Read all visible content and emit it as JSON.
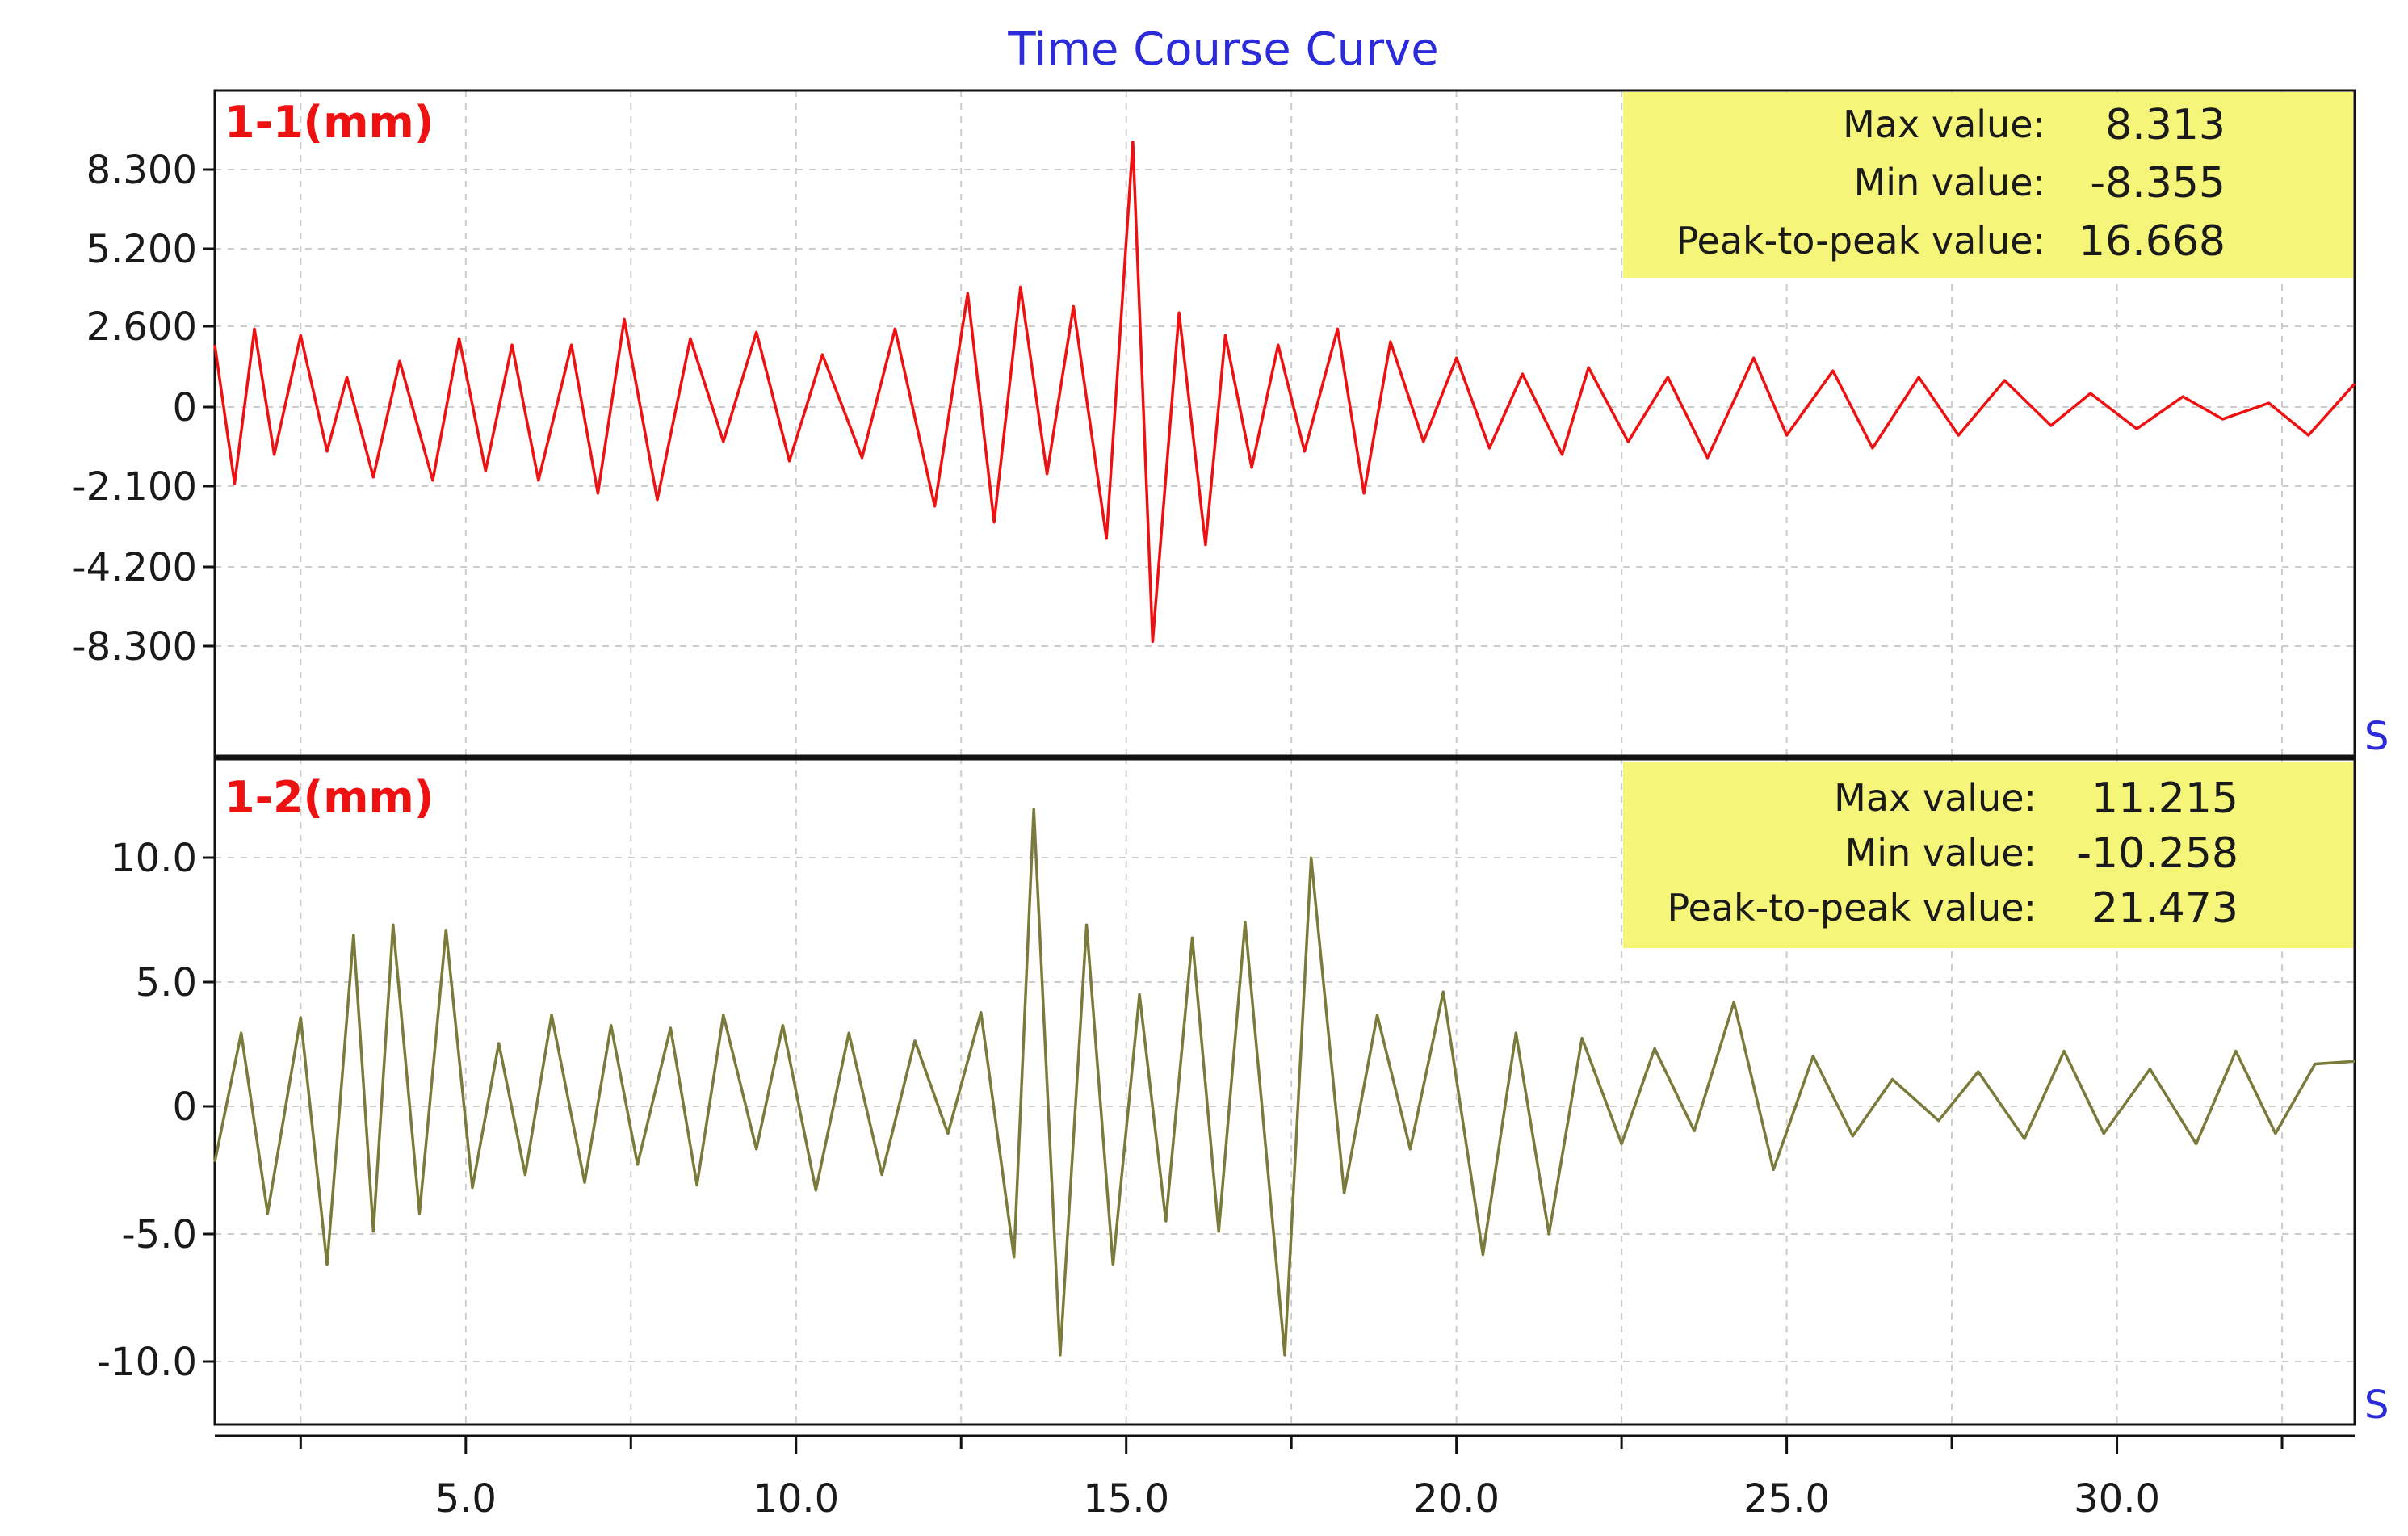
{
  "title": "Time Course Curve",
  "x_unit": "S",
  "stat_labels": {
    "max": "Max value:",
    "min": "Min value:",
    "p2p": "Peak-to-peak value:"
  },
  "x_axis": {
    "range": [
      1.2,
      33.6
    ],
    "tick_labels": [
      "5.0",
      "10.0",
      "15.0",
      "20.0",
      "25.0",
      "30.0"
    ],
    "tick_values": [
      5,
      10,
      15,
      20,
      25,
      30
    ],
    "minor_tick_values": [
      2.5,
      7.5,
      12.5,
      17.5,
      22.5,
      27.5,
      32.5
    ]
  },
  "colors": {
    "series1": "#ee1111",
    "series2": "#7a7a3a",
    "stats_box": "#f5f57a",
    "title": "#2b2bd9",
    "label": "#ee1111",
    "grid": "#cccccc"
  },
  "chart_data": [
    {
      "type": "line",
      "series": [
        {
          "name": "1-1(mm)"
        }
      ],
      "y_tick_labels": [
        "8.300",
        "5.200",
        "2.600",
        "0",
        "-2.100",
        "-4.200",
        "-8.300"
      ],
      "stats": {
        "max": "8.313",
        "min": "-8.355",
        "p2p": "16.668"
      },
      "x": [
        1.2,
        1.5,
        1.8,
        2.1,
        2.5,
        2.9,
        3.2,
        3.6,
        4.0,
        4.5,
        4.9,
        5.3,
        5.7,
        6.1,
        6.6,
        7.0,
        7.4,
        7.9,
        8.4,
        8.9,
        9.4,
        9.9,
        10.4,
        11.0,
        11.5,
        12.1,
        12.6,
        13.0,
        13.4,
        13.8,
        14.2,
        14.7,
        15.1,
        15.4,
        15.8,
        16.2,
        16.5,
        16.9,
        17.3,
        17.7,
        18.2,
        18.6,
        19.0,
        19.5,
        20.0,
        20.5,
        21.0,
        21.6,
        22.0,
        22.6,
        23.2,
        23.8,
        24.5,
        25.0,
        25.7,
        26.3,
        27.0,
        27.6,
        28.3,
        29.0,
        29.6,
        30.3,
        31.0,
        31.6,
        32.3,
        32.9,
        33.6
      ],
      "y": [
        2.0,
        -2.3,
        2.5,
        -1.4,
        2.3,
        -1.3,
        1.0,
        -2.1,
        1.5,
        -2.2,
        2.2,
        -1.9,
        2.0,
        -2.2,
        2.0,
        -2.6,
        2.8,
        -2.8,
        2.2,
        -1.0,
        2.4,
        -1.6,
        1.7,
        -1.5,
        2.5,
        -3.0,
        3.6,
        -3.5,
        3.8,
        -2.0,
        3.2,
        -4.0,
        8.3,
        -7.2,
        3.0,
        -4.2,
        2.3,
        -1.8,
        2.0,
        -1.3,
        2.5,
        -2.6,
        2.1,
        -1.0,
        1.6,
        -1.2,
        1.1,
        -1.4,
        1.3,
        -1.0,
        1.0,
        -1.5,
        1.6,
        -0.8,
        1.2,
        -1.2,
        1.0,
        -0.8,
        0.9,
        -0.5,
        0.5,
        -0.6,
        0.4,
        -0.3,
        0.2,
        -0.8,
        0.8
      ],
      "ylim": [
        -10.8,
        9.9
      ]
    },
    {
      "type": "line",
      "series": [
        {
          "name": "1-2(mm)"
        }
      ],
      "y_tick_labels": [
        "10.0",
        "5.0",
        "0",
        "-5.0",
        "-10.0"
      ],
      "stats": {
        "max": "11.215",
        "min": "-10.258",
        "p2p": "21.473"
      },
      "x": [
        1.2,
        1.6,
        2.0,
        2.5,
        2.9,
        3.3,
        3.6,
        3.9,
        4.3,
        4.7,
        5.1,
        5.5,
        5.9,
        6.3,
        6.8,
        7.2,
        7.6,
        8.1,
        8.5,
        8.9,
        9.4,
        9.8,
        10.3,
        10.8,
        11.3,
        11.8,
        12.3,
        12.8,
        13.3,
        13.6,
        14.0,
        14.4,
        14.8,
        15.2,
        15.6,
        16.0,
        16.4,
        16.8,
        17.4,
        17.8,
        18.3,
        18.8,
        19.3,
        19.8,
        20.4,
        20.9,
        21.4,
        21.9,
        22.5,
        23.0,
        23.6,
        24.2,
        24.8,
        25.4,
        26.0,
        26.6,
        27.3,
        27.9,
        28.6,
        29.2,
        29.8,
        30.5,
        31.2,
        31.8,
        32.4,
        33.0,
        33.6
      ],
      "y": [
        -2.5,
        2.5,
        -4.5,
        3.1,
        -6.5,
        6.3,
        -5.2,
        6.7,
        -4.5,
        6.5,
        -3.5,
        2.1,
        -3.0,
        3.2,
        -3.3,
        2.8,
        -2.6,
        2.7,
        -3.4,
        3.2,
        -2.0,
        2.8,
        -3.6,
        2.5,
        -3.0,
        2.2,
        -1.4,
        3.3,
        -6.2,
        11.2,
        -10.0,
        6.7,
        -6.5,
        4.0,
        -4.8,
        6.2,
        -5.2,
        6.8,
        -10.0,
        9.3,
        -3.7,
        3.2,
        -2.0,
        4.1,
        -6.1,
        2.5,
        -5.3,
        2.3,
        -1.8,
        1.9,
        -1.3,
        3.7,
        -2.8,
        1.6,
        -1.5,
        0.7,
        -0.9,
        1.0,
        -1.6,
        1.8,
        -1.4,
        1.1,
        -1.8,
        1.8,
        -1.4,
        1.3,
        1.4
      ],
      "ylim": [
        -12.7,
        13.2
      ]
    }
  ]
}
